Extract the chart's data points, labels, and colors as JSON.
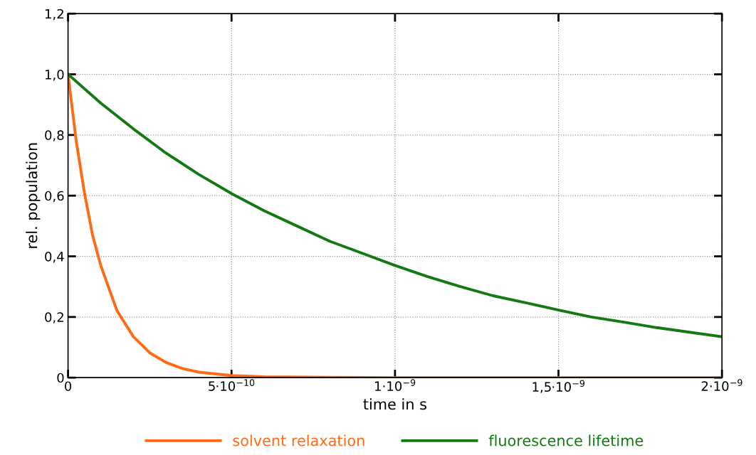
{
  "chart_data": {
    "type": "line",
    "xlabel": "time in s",
    "ylabel": "rel. population",
    "xlim": [
      0,
      2e-09
    ],
    "ylim": [
      0,
      1.2
    ],
    "xticks": [
      0,
      {
        "value": 5e-10,
        "label": "5·10$^{−10}$"
      },
      {
        "value": 1e-09,
        "label": "1·10$^{−9}$"
      },
      {
        "value": 1.5e-09,
        "label": "1,5·10$^{−9}$"
      },
      {
        "value": 2e-09,
        "label": "2·10$^{−9}$"
      }
    ],
    "yticks": [
      0,
      {
        "value": 0.2,
        "label": "0,2"
      },
      {
        "value": 0.4,
        "label": "0,4"
      },
      {
        "value": 0.6,
        "label": "0,6"
      },
      {
        "value": 0.8,
        "label": "0,8"
      },
      {
        "value": 1.0,
        "label": "1,0"
      },
      {
        "value": 1.2,
        "label": "1,2"
      }
    ],
    "grid": true,
    "legend": "bottom",
    "marker": "none",
    "line_style": "solid",
    "series": [
      {
        "name": "solvent relaxation",
        "color": "#ff6a13",
        "x": [
          0,
          2.5e-11,
          5e-11,
          7.5e-11,
          1e-10,
          1.5e-10,
          2e-10,
          2.5e-10,
          3e-10,
          3.5e-10,
          4e-10,
          5e-10,
          6e-10,
          8e-10,
          1e-09,
          1.5e-09,
          2e-09
        ],
        "values": [
          1.0,
          0.78,
          0.61,
          0.47,
          0.37,
          0.22,
          0.135,
          0.082,
          0.05,
          0.03,
          0.018,
          0.007,
          0.003,
          0.001,
          0,
          0,
          0
        ]
      },
      {
        "name": "fluorescence lifetime",
        "color": "#137a13",
        "x": [
          0,
          1e-10,
          2e-10,
          3e-10,
          4e-10,
          5e-10,
          6e-10,
          7e-10,
          8e-10,
          9e-10,
          1e-09,
          1.1e-09,
          1.2e-09,
          1.3e-09,
          1.4e-09,
          1.5e-09,
          1.6e-09,
          1.7e-09,
          1.8e-09,
          1.9e-09,
          2e-09
        ],
        "values": [
          1.0,
          0.905,
          0.82,
          0.74,
          0.67,
          0.607,
          0.55,
          0.5,
          0.45,
          0.41,
          0.37,
          0.333,
          0.3,
          0.27,
          0.247,
          0.223,
          0.2,
          0.183,
          0.165,
          0.15,
          0.135
        ]
      }
    ]
  }
}
